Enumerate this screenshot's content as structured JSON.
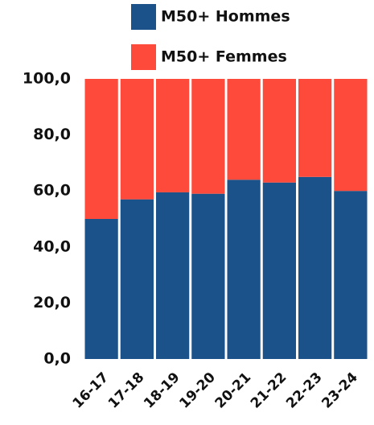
{
  "chart_data": {
    "type": "stacked_bar",
    "categories": [
      "16-17",
      "17-18",
      "18-19",
      "19-20",
      "20-21",
      "21-22",
      "22-23",
      "23-24"
    ],
    "series": [
      {
        "name": "M50+ Hommes",
        "color": "#1a5289",
        "values": [
          50,
          57,
          59.5,
          59,
          64,
          63,
          65,
          60
        ]
      },
      {
        "name": "M50+ Femmes",
        "color": "#fd4a3a",
        "values": [
          50,
          43,
          40.5,
          41,
          36,
          37,
          35,
          40
        ]
      }
    ],
    "ylim": [
      0,
      100
    ],
    "yticks": [
      {
        "value": 0,
        "label": "0,0"
      },
      {
        "value": 20,
        "label": "20,0"
      },
      {
        "value": 40,
        "label": "40,0"
      },
      {
        "value": 60,
        "label": "60,0"
      },
      {
        "value": 80,
        "label": "80,0"
      },
      {
        "value": 100,
        "label": "100,0"
      }
    ]
  }
}
